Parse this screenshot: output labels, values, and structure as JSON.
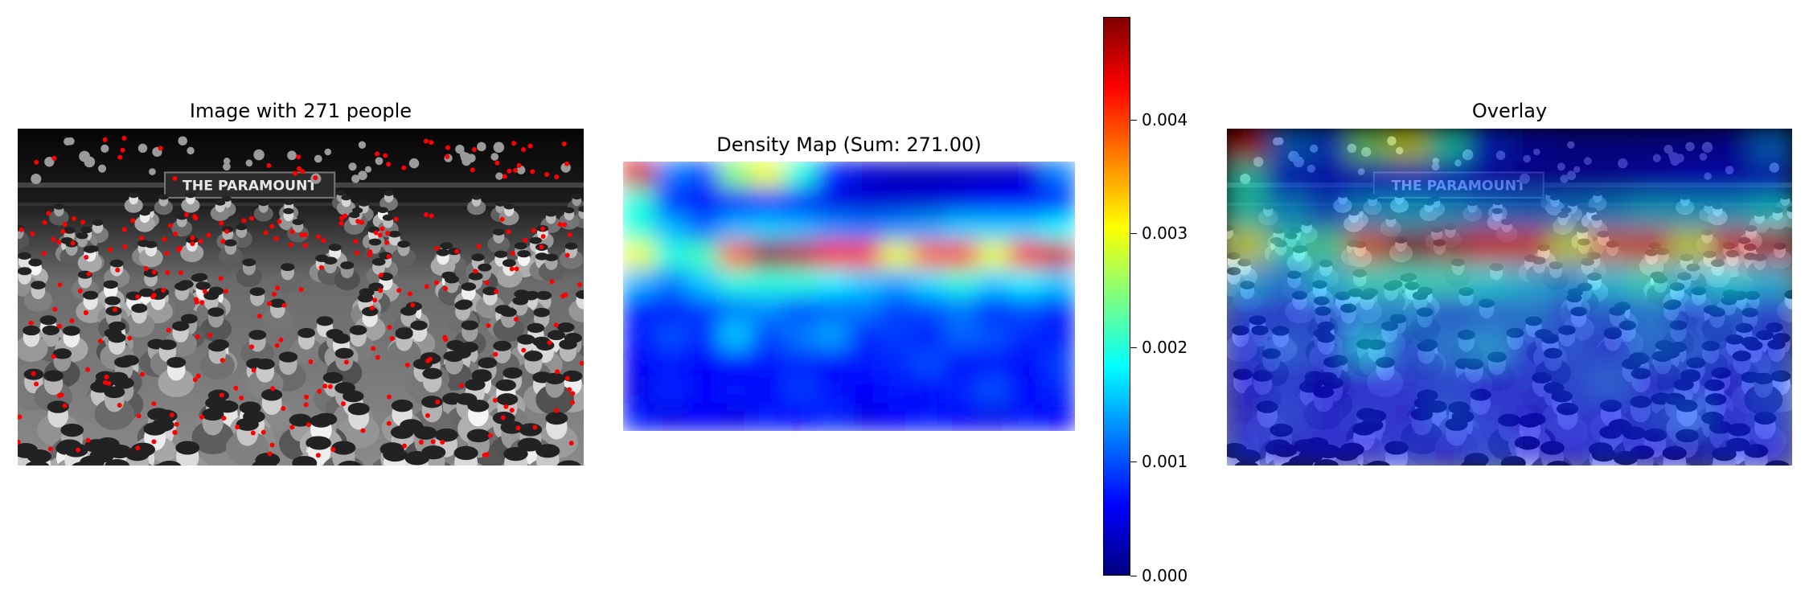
{
  "panels": {
    "image": {
      "title": "Image with 271 people",
      "sign_text": "THE PARAMOUNT",
      "point_color": "#ff0000",
      "tone": "grayscale"
    },
    "density": {
      "title": "Density Map (Sum: 271.00)",
      "colormap": "jet"
    },
    "overlay": {
      "title": "Overlay",
      "sign_text": "THE PARAMOUNT",
      "colormap": "jet"
    }
  },
  "colorbar": {
    "colormap": "jet",
    "range": [
      0,
      0.0049
    ],
    "ticks": [
      {
        "value": 0.0,
        "label": "0.000"
      },
      {
        "value": 0.001,
        "label": "0.001"
      },
      {
        "value": 0.002,
        "label": "0.002"
      },
      {
        "value": 0.003,
        "label": "0.003"
      },
      {
        "value": 0.004,
        "label": "0.004"
      }
    ]
  },
  "chart_data": {
    "type": "heatmap",
    "count": 271,
    "density_sum": 271.0,
    "value_range": [
      0,
      0.0049
    ],
    "grid_rows": [
      "0.0",
      "0.1",
      "0.2",
      "0.3",
      "0.4",
      "0.5",
      "0.6",
      "0.7",
      "0.8",
      "0.9"
    ],
    "grid_cols": [
      "0.00",
      "0.07",
      "0.14",
      "0.21",
      "0.29",
      "0.36",
      "0.43",
      "0.50",
      "0.57",
      "0.64",
      "0.71",
      "0.79",
      "0.86",
      "0.93"
    ],
    "grid": [
      [
        0.0045,
        0.0012,
        0.001,
        0.0025,
        0.003,
        0.002,
        0.0008,
        0.0004,
        0.0003,
        0.0003,
        0.0003,
        0.0003,
        0.0004,
        0.0012
      ],
      [
        0.002,
        0.0008,
        0.0006,
        0.0006,
        0.0007,
        0.0006,
        0.0005,
        0.0004,
        0.0004,
        0.0004,
        0.0005,
        0.0006,
        0.0006,
        0.0008
      ],
      [
        0.002,
        0.0015,
        0.0011,
        0.0015,
        0.0016,
        0.0015,
        0.0013,
        0.0012,
        0.0013,
        0.0014,
        0.0016,
        0.0016,
        0.0016,
        0.0018
      ],
      [
        0.003,
        0.002,
        0.0022,
        0.0038,
        0.0048,
        0.0046,
        0.0042,
        0.004,
        0.003,
        0.0038,
        0.004,
        0.003,
        0.0042,
        0.0045
      ],
      [
        0.0015,
        0.0012,
        0.0016,
        0.002,
        0.002,
        0.002,
        0.0018,
        0.0016,
        0.0014,
        0.0017,
        0.002,
        0.0016,
        0.0018,
        0.0016
      ],
      [
        0.0008,
        0.0007,
        0.0009,
        0.0012,
        0.0013,
        0.001,
        0.0011,
        0.0012,
        0.0009,
        0.001,
        0.0012,
        0.0008,
        0.001,
        0.0008
      ],
      [
        0.0007,
        0.001,
        0.0008,
        0.0016,
        0.0009,
        0.0012,
        0.0014,
        0.0008,
        0.0009,
        0.0007,
        0.0011,
        0.001,
        0.0008,
        0.0007
      ],
      [
        0.0006,
        0.0007,
        0.0006,
        0.0006,
        0.0007,
        0.0008,
        0.0006,
        0.0007,
        0.0008,
        0.001,
        0.0006,
        0.0007,
        0.0006,
        0.0009
      ],
      [
        0.0005,
        0.0008,
        0.0006,
        0.0007,
        0.0006,
        0.0009,
        0.0007,
        0.0006,
        0.0007,
        0.0006,
        0.0008,
        0.001,
        0.0006,
        0.0008
      ],
      [
        0.0007,
        0.0005,
        0.0006,
        0.0005,
        0.0007,
        0.0006,
        0.0008,
        0.0005,
        0.0006,
        0.0007,
        0.0006,
        0.0005,
        0.0007,
        0.0006
      ]
    ]
  }
}
